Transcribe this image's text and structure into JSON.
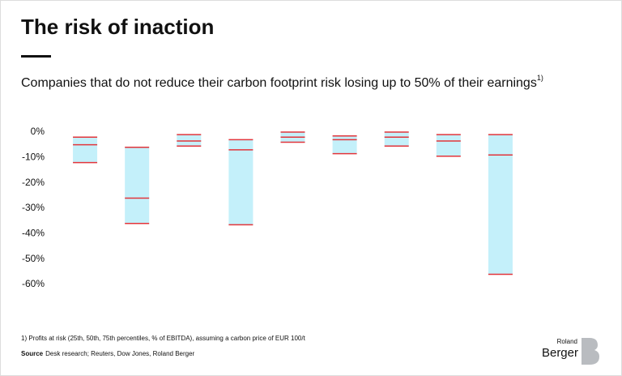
{
  "chart_data": {
    "type": "range-bar",
    "title": "The risk of inaction",
    "subtitle": "Companies that do not reduce their carbon footprint risk losing up to 50% of their earnings",
    "subtitle_note": "1)",
    "footnote": "1) Profits at risk (25th, 50th, 75th percentiles, % of EBITDA), assuming a carbon price of EUR 100/t",
    "source_label": "Source",
    "source": "Desk research; Reuters, Dow Jones, Roland Berger",
    "logo_small": "Roland",
    "logo": "Berger",
    "categories": [
      null,
      null,
      null,
      null,
      null,
      null,
      null,
      null,
      null
    ],
    "series": [
      {
        "values": [
          -2,
          -6,
          -1,
          -3,
          0,
          -1.5,
          0,
          -1,
          -1
        ]
      },
      {
        "values": [
          -5,
          -26,
          -3.5,
          -7,
          -2,
          -3,
          -2,
          -3.5,
          -9
        ]
      },
      {
        "values": [
          -12,
          -36,
          -5.5,
          -36.5,
          -4,
          -8.5,
          -5.5,
          -9.5,
          -56
        ]
      }
    ],
    "fill_color": "#c4f0fa",
    "line_color": "#e2353b",
    "ylim": [
      -60,
      0
    ],
    "yticks": [
      {
        "value": 0,
        "label": "0%"
      },
      {
        "value": -10,
        "label": "-10%"
      },
      {
        "value": -20,
        "label": "-20%"
      },
      {
        "value": -30,
        "label": "-30%"
      },
      {
        "value": -40,
        "label": "-40%"
      },
      {
        "value": -50,
        "label": "-50%"
      },
      {
        "value": -60,
        "label": "-60%"
      }
    ],
    "grid": false
  }
}
